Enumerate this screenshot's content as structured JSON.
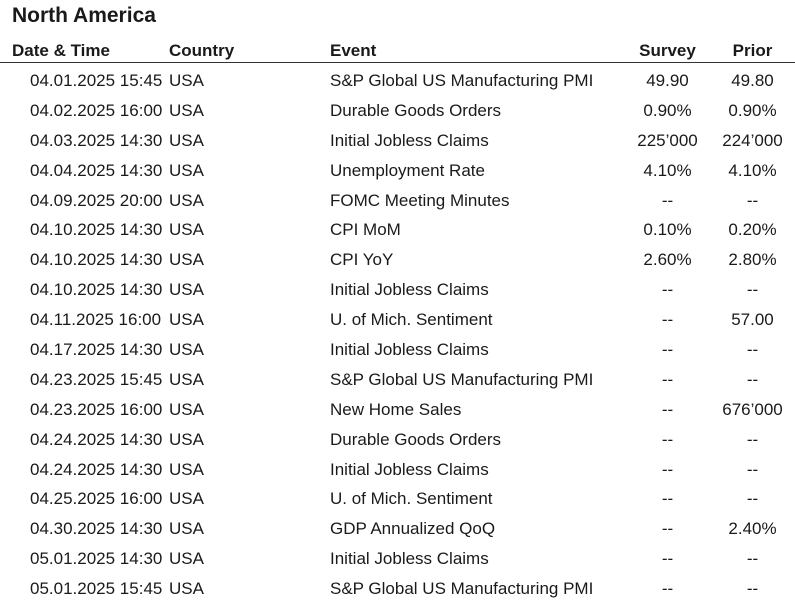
{
  "title": "North America",
  "headers": {
    "date": "Date & Time",
    "country": "Country",
    "event": "Event",
    "survey": "Survey",
    "prior": "Prior"
  },
  "rows": [
    {
      "date": "04.01.2025 15:45",
      "country": "USA",
      "event": "S&P Global US Manufacturing PMI",
      "survey": "49.90",
      "prior": "49.80"
    },
    {
      "date": "04.02.2025 16:00",
      "country": "USA",
      "event": "Durable Goods Orders",
      "survey": "0.90%",
      "prior": "0.90%"
    },
    {
      "date": "04.03.2025 14:30",
      "country": "USA",
      "event": "Initial Jobless Claims",
      "survey": "225’000",
      "prior": "224’000"
    },
    {
      "date": "04.04.2025 14:30",
      "country": "USA",
      "event": "Unemployment Rate",
      "survey": "4.10%",
      "prior": "4.10%"
    },
    {
      "date": "04.09.2025 20:00",
      "country": "USA",
      "event": "FOMC Meeting Minutes",
      "survey": "--",
      "prior": "--"
    },
    {
      "date": "04.10.2025 14:30",
      "country": "USA",
      "event": "CPI MoM",
      "survey": "0.10%",
      "prior": "0.20%"
    },
    {
      "date": "04.10.2025 14:30",
      "country": "USA",
      "event": "CPI YoY",
      "survey": "2.60%",
      "prior": "2.80%"
    },
    {
      "date": "04.10.2025 14:30",
      "country": "USA",
      "event": "Initial Jobless Claims",
      "survey": "--",
      "prior": "--"
    },
    {
      "date": "04.11.2025 16:00",
      "country": "USA",
      "event": "U. of Mich. Sentiment",
      "survey": "--",
      "prior": "57.00"
    },
    {
      "date": "04.17.2025 14:30",
      "country": "USA",
      "event": "Initial Jobless Claims",
      "survey": "--",
      "prior": "--"
    },
    {
      "date": "04.23.2025 15:45",
      "country": "USA",
      "event": "S&P Global US Manufacturing PMI",
      "survey": "--",
      "prior": "--"
    },
    {
      "date": "04.23.2025 16:00",
      "country": "USA",
      "event": "New Home Sales",
      "survey": "--",
      "prior": "676’000"
    },
    {
      "date": "04.24.2025 14:30",
      "country": "USA",
      "event": "Durable Goods Orders",
      "survey": "--",
      "prior": "--"
    },
    {
      "date": "04.24.2025 14:30",
      "country": "USA",
      "event": "Initial Jobless Claims",
      "survey": "--",
      "prior": "--"
    },
    {
      "date": "04.25.2025 16:00",
      "country": "USA",
      "event": "U. of Mich. Sentiment",
      "survey": "--",
      "prior": "--"
    },
    {
      "date": "04.30.2025 14:30",
      "country": "USA",
      "event": "GDP Annualized QoQ",
      "survey": "--",
      "prior": "2.40%"
    },
    {
      "date": "05.01.2025 14:30",
      "country": "USA",
      "event": "Initial Jobless Claims",
      "survey": "--",
      "prior": "--"
    },
    {
      "date": "05.01.2025 15:45",
      "country": "USA",
      "event": "S&P Global US Manufacturing PMI",
      "survey": "--",
      "prior": "--"
    }
  ]
}
